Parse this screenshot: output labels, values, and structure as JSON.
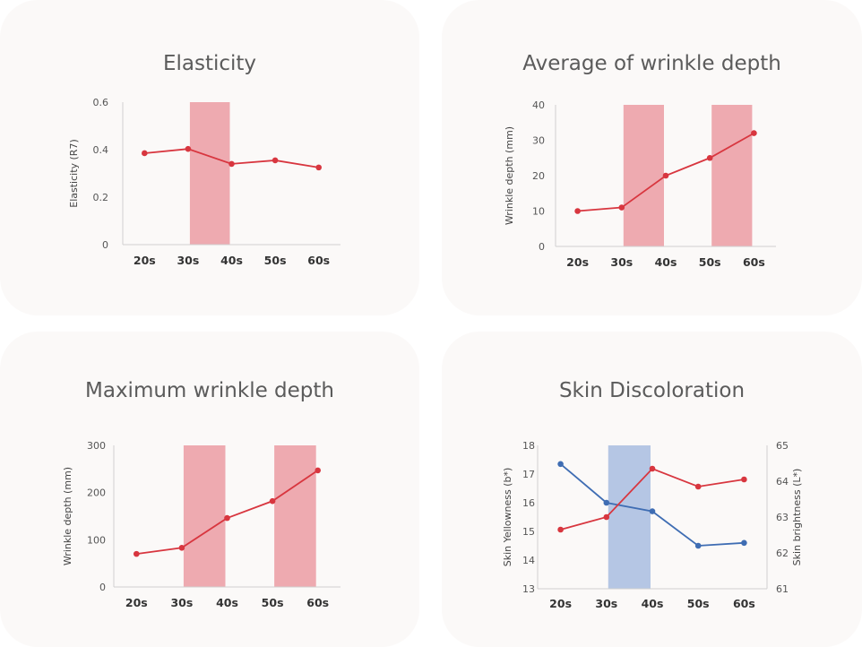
{
  "colors": {
    "card_bg": "#fbf9f8",
    "red_line": "#d8363f",
    "red_band": "#eeaab0",
    "blue_line": "#3f6db3",
    "blue_band": "#b5c6e4",
    "axis": "#d0d0d0"
  },
  "chart_data": [
    {
      "type": "line",
      "title": "Elasticity",
      "categories": [
        "20s",
        "30s",
        "40s",
        "50s",
        "60s"
      ],
      "ylabel": "Elasticity (R7)",
      "ylim": [
        0,
        0.6
      ],
      "yticks": [
        "0",
        "0.2",
        "0.4",
        "0.6"
      ],
      "series": [
        {
          "values": [
            0.385,
            0.403,
            0.34,
            0.355,
            0.325
          ],
          "color": "#d8363f"
        }
      ],
      "highlight_bands": [
        [
          "30s",
          "40s"
        ]
      ],
      "band_color": "#eeaab0",
      "grid": false
    },
    {
      "type": "line",
      "title": "Average of wrinkle depth",
      "categories": [
        "20s",
        "30s",
        "40s",
        "50s",
        "60s"
      ],
      "ylabel": "Wrinkle depth (mm)",
      "ylim": [
        0,
        40
      ],
      "yticks": [
        "0",
        "10",
        "20",
        "30",
        "40"
      ],
      "series": [
        {
          "values": [
            10,
            11,
            20,
            25,
            32
          ],
          "color": "#d8363f"
        }
      ],
      "highlight_bands": [
        [
          "30s",
          "40s"
        ],
        [
          "50s",
          "60s"
        ]
      ],
      "band_color": "#eeaab0",
      "grid": false
    },
    {
      "type": "line",
      "title": "Maximum wrinkle depth",
      "categories": [
        "20s",
        "30s",
        "40s",
        "50s",
        "60s"
      ],
      "ylabel": "Wrinkle depth (mm)",
      "ylim": [
        0,
        300
      ],
      "yticks": [
        "0",
        "100",
        "200",
        "300"
      ],
      "series": [
        {
          "values": [
            70,
            83,
            146,
            182,
            247
          ],
          "color": "#d8363f"
        }
      ],
      "highlight_bands": [
        [
          "30s",
          "40s"
        ],
        [
          "50s",
          "60s"
        ]
      ],
      "band_color": "#eeaab0",
      "grid": false
    },
    {
      "type": "line",
      "title": "Skin Discoloration",
      "categories": [
        "20s",
        "30s",
        "40s",
        "50s",
        "60s"
      ],
      "ylabel": "Skin Yellowness (b*)",
      "ylim": [
        13,
        18
      ],
      "yticks": [
        "13",
        "14",
        "15",
        "16",
        "17",
        "18"
      ],
      "y2label": "Skin brightness (L*)",
      "y2lim": [
        61,
        65
      ],
      "y2ticks": [
        "61",
        "62",
        "63",
        "64",
        "65"
      ],
      "series": [
        {
          "axis": "left",
          "values": [
            17.35,
            16.0,
            15.7,
            14.5,
            14.6
          ],
          "color": "#3f6db3"
        },
        {
          "axis": "right",
          "values": [
            62.65,
            63.0,
            64.35,
            63.85,
            64.05
          ],
          "color": "#d8363f"
        }
      ],
      "highlight_bands": [
        [
          "30s",
          "40s"
        ]
      ],
      "band_color": "#b5c6e4",
      "grid": false
    }
  ]
}
